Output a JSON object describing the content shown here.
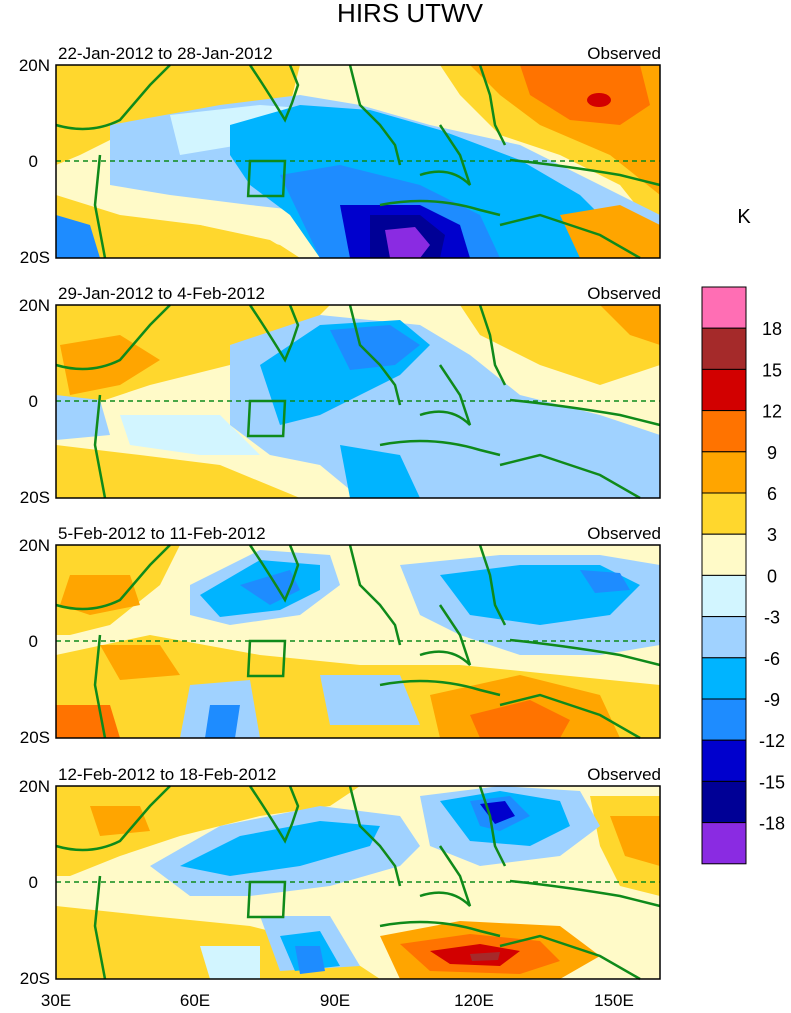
{
  "title": "HIRS UTWV",
  "panels": [
    {
      "label": "22-Jan-2012 to 28-Jan-2012",
      "tag": "Observed"
    },
    {
      "label": "29-Jan-2012 to 4-Feb-2012",
      "tag": "Observed"
    },
    {
      "label": "5-Feb-2012 to 11-Feb-2012",
      "tag": "Observed"
    },
    {
      "label": "12-Feb-2012 to 18-Feb-2012",
      "tag": "Observed"
    }
  ],
  "lat_labels": {
    "north": "20N",
    "equator": "0",
    "south": "20S"
  },
  "lon_labels": [
    "30E",
    "60E",
    "90E",
    "120E",
    "150E"
  ],
  "colorbar": {
    "unit": "K",
    "tick_labels": [
      "18",
      "15",
      "12",
      "9",
      "6",
      "3",
      "0",
      "-3",
      "-6",
      "-9",
      "-12",
      "-15",
      "-18"
    ],
    "colors": [
      "#ff6eb4",
      "#a52a2a",
      "#d20000",
      "#ff7300",
      "#ffa500",
      "#ffd72d",
      "#fffac8",
      "#d2f5ff",
      "#a0d2ff",
      "#00b4ff",
      "#1e8cff",
      "#0000cd",
      "#000096",
      "#8a2be2"
    ]
  }
}
